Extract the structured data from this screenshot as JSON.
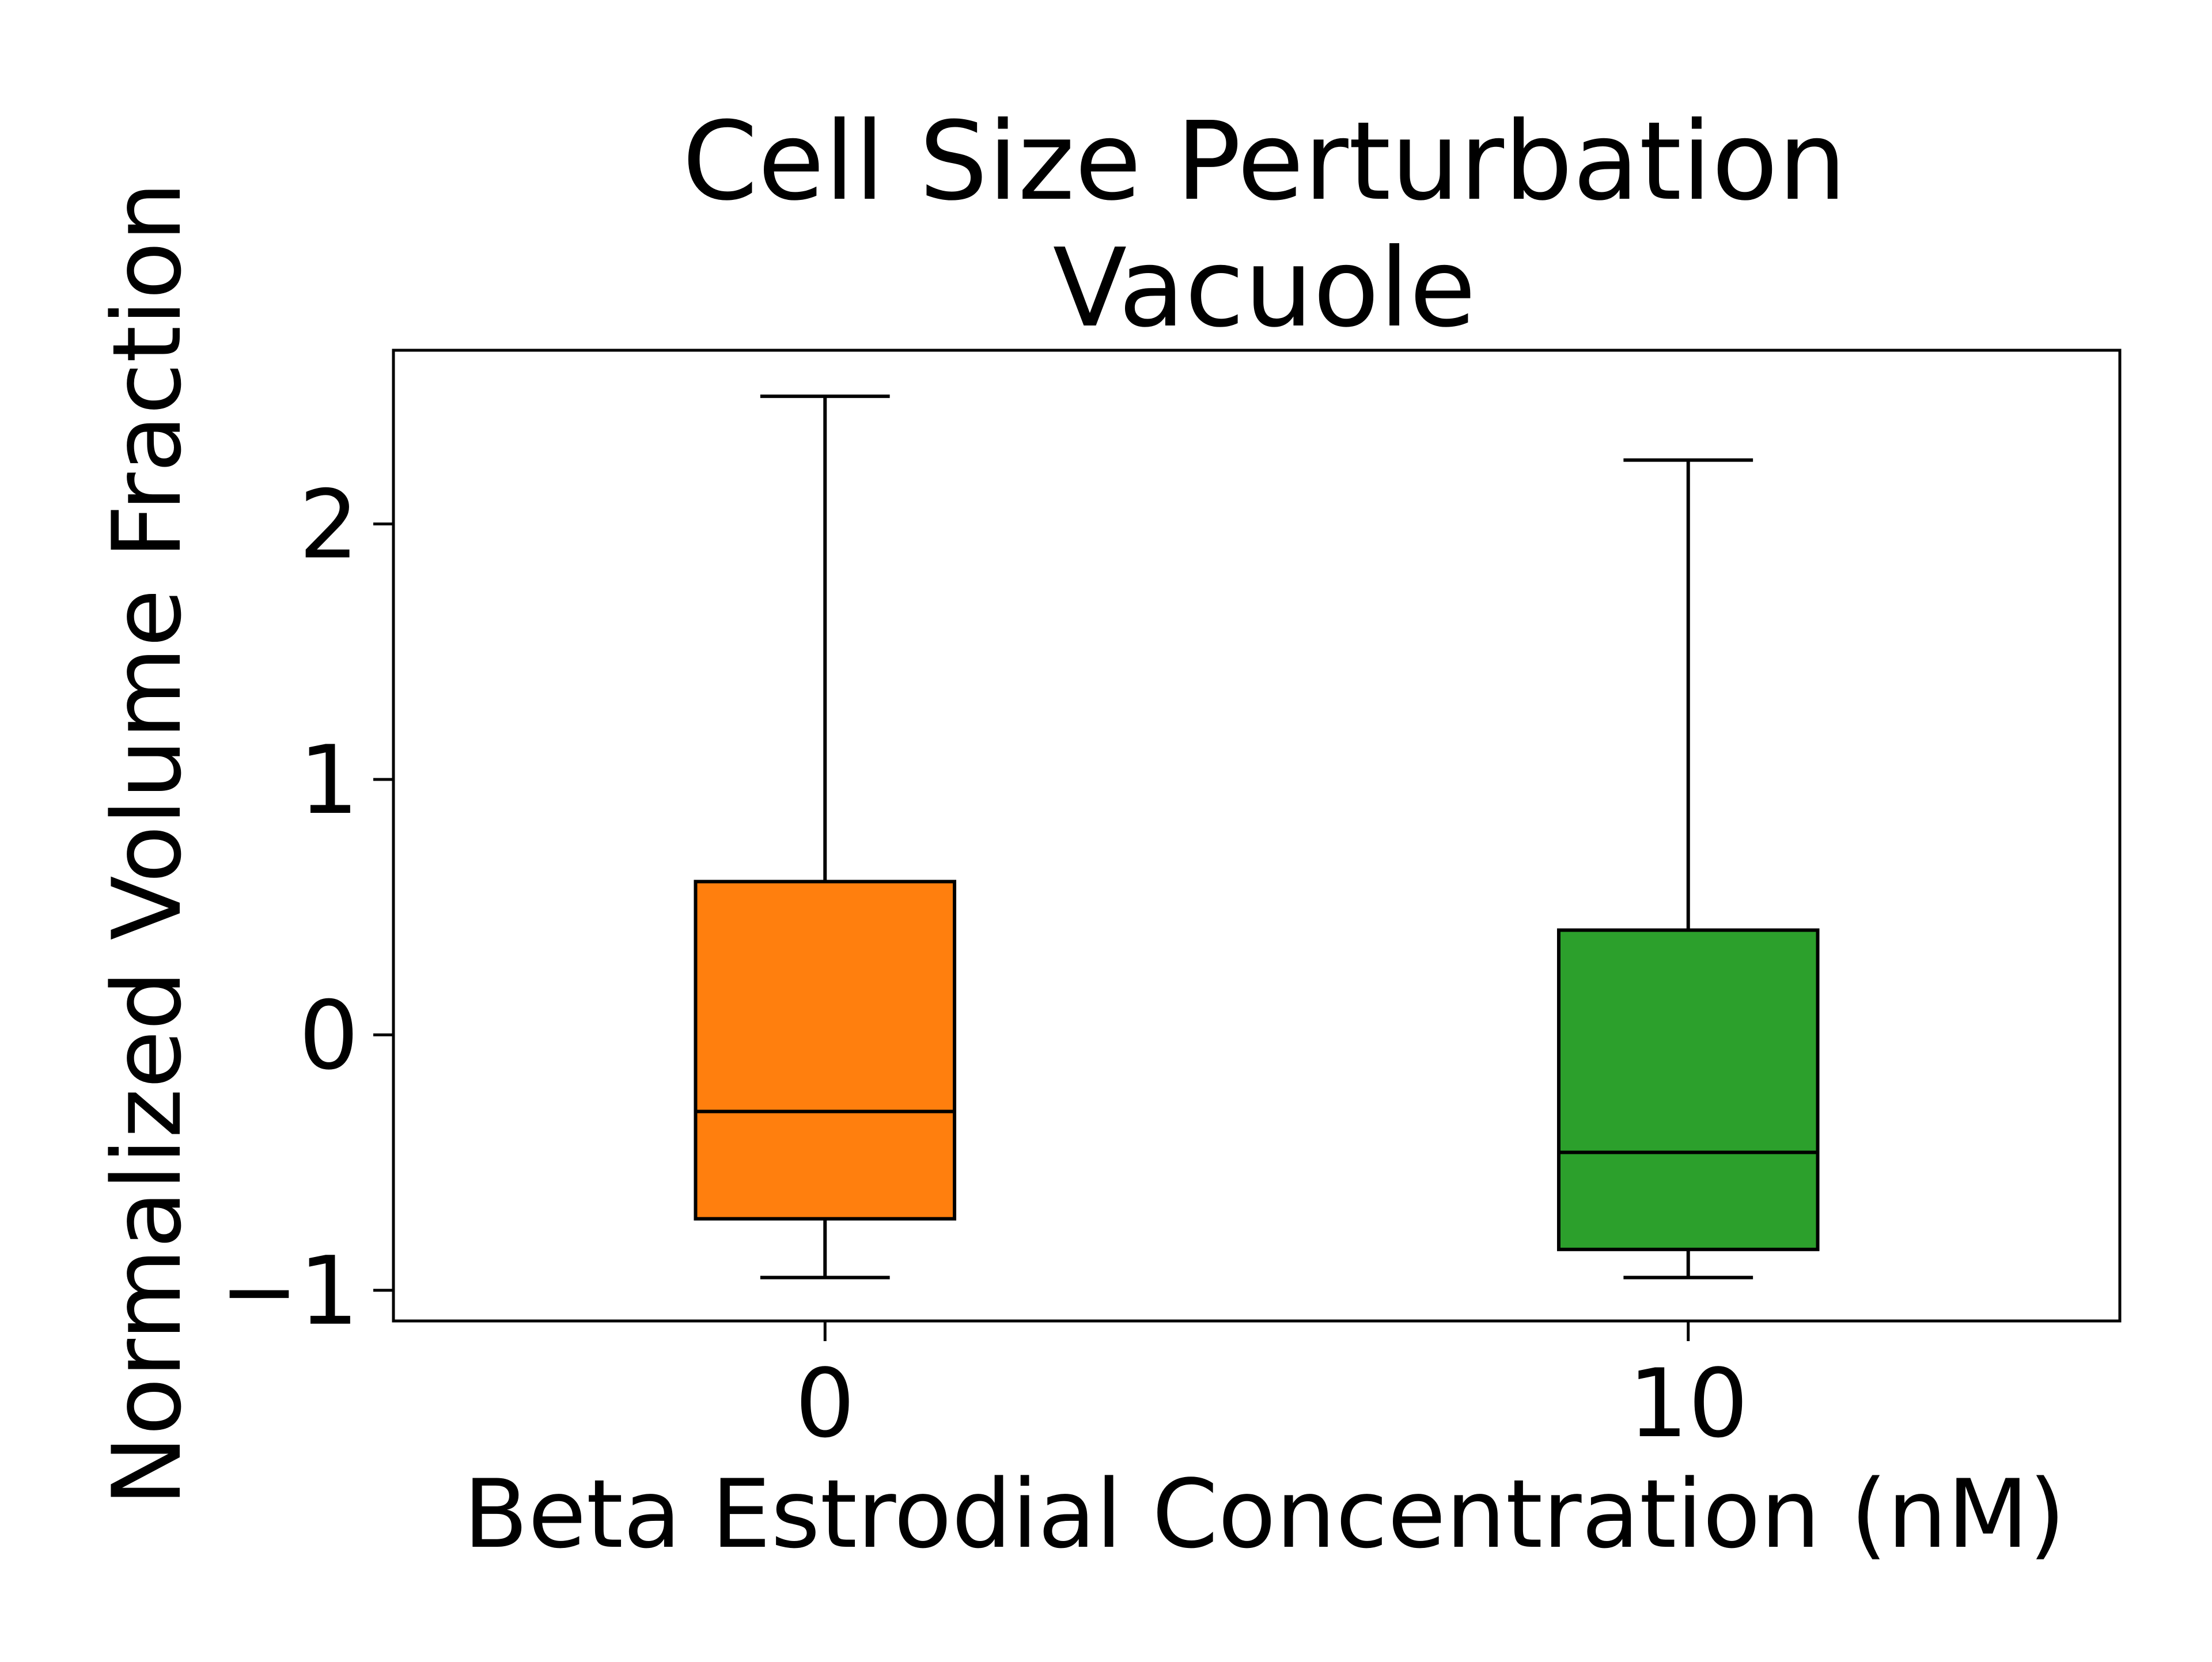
{
  "chart_data": {
    "type": "box",
    "title": "Cell Size Perturbation",
    "subtitle": "Vacuole",
    "xlabel": "Beta Estrodial Concentration (nM)",
    "ylabel": "Normalized Volume Fraction",
    "categories": [
      "0",
      "10"
    ],
    "ylim": [
      -1.12,
      2.68
    ],
    "yticks": [
      -1,
      0,
      1,
      2
    ],
    "ytick_labels": [
      "−1",
      "0",
      "1",
      "2"
    ],
    "grid": false,
    "legend": "none",
    "boxes": [
      {
        "category": "0",
        "whisker_low": -0.95,
        "q1": -0.72,
        "median": -0.3,
        "q3": 0.6,
        "whisker_high": 2.5,
        "color": "#ff7f0e"
      },
      {
        "category": "10",
        "whisker_low": -0.95,
        "q1": -0.84,
        "median": -0.46,
        "q3": 0.41,
        "whisker_high": 2.25,
        "color": "#2ca02c"
      }
    ]
  }
}
